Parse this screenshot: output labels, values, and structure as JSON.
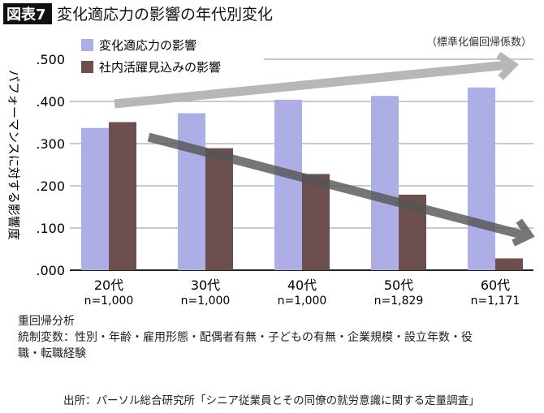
{
  "header": {
    "badge": "図表7",
    "title": "変化適応力の影響の年代別変化"
  },
  "chart_data": {
    "type": "bar",
    "title": "変化適応力の影響の年代別変化",
    "ylabel": "パフォーマンスに対する影響度",
    "unit_note": "（標準化偏回帰係数）",
    "categories": [
      "20代",
      "30代",
      "40代",
      "50代",
      "60代"
    ],
    "category_sub": [
      "n=1,000",
      "n=1,000",
      "n=1,000",
      "n=1,829",
      "n=1,171"
    ],
    "yticks": [
      ".000",
      ".100",
      ".200",
      ".300",
      ".400",
      ".500"
    ],
    "ylim": [
      0,
      0.5
    ],
    "grid": true,
    "legend_position": "top-left",
    "series": [
      {
        "name": "変化適応力の影響",
        "color": "#adaee6",
        "values": [
          0.337,
          0.372,
          0.404,
          0.413,
          0.433
        ]
      },
      {
        "name": "社内活躍見込みの影響",
        "color": "#6e4f50",
        "values": [
          0.351,
          0.289,
          0.228,
          0.179,
          0.028
        ]
      }
    ],
    "trend_arrows": [
      {
        "series": "変化適応力の影響",
        "direction": "up",
        "color": "#b4b4b4"
      },
      {
        "series": "社内活躍見込みの影響",
        "direction": "down",
        "color": "#555555"
      }
    ]
  },
  "notes": {
    "method": "重回帰分析",
    "controls": "統制変数：性別・年齢・雇用形態・配偶者有無・子どもの有無・企業規模・設立年数・役",
    "controls2": "職・転職経験",
    "source": "出所：パーソル総合研究所「シニア従業員とその同僚の就労意識に関する定量調査」"
  }
}
